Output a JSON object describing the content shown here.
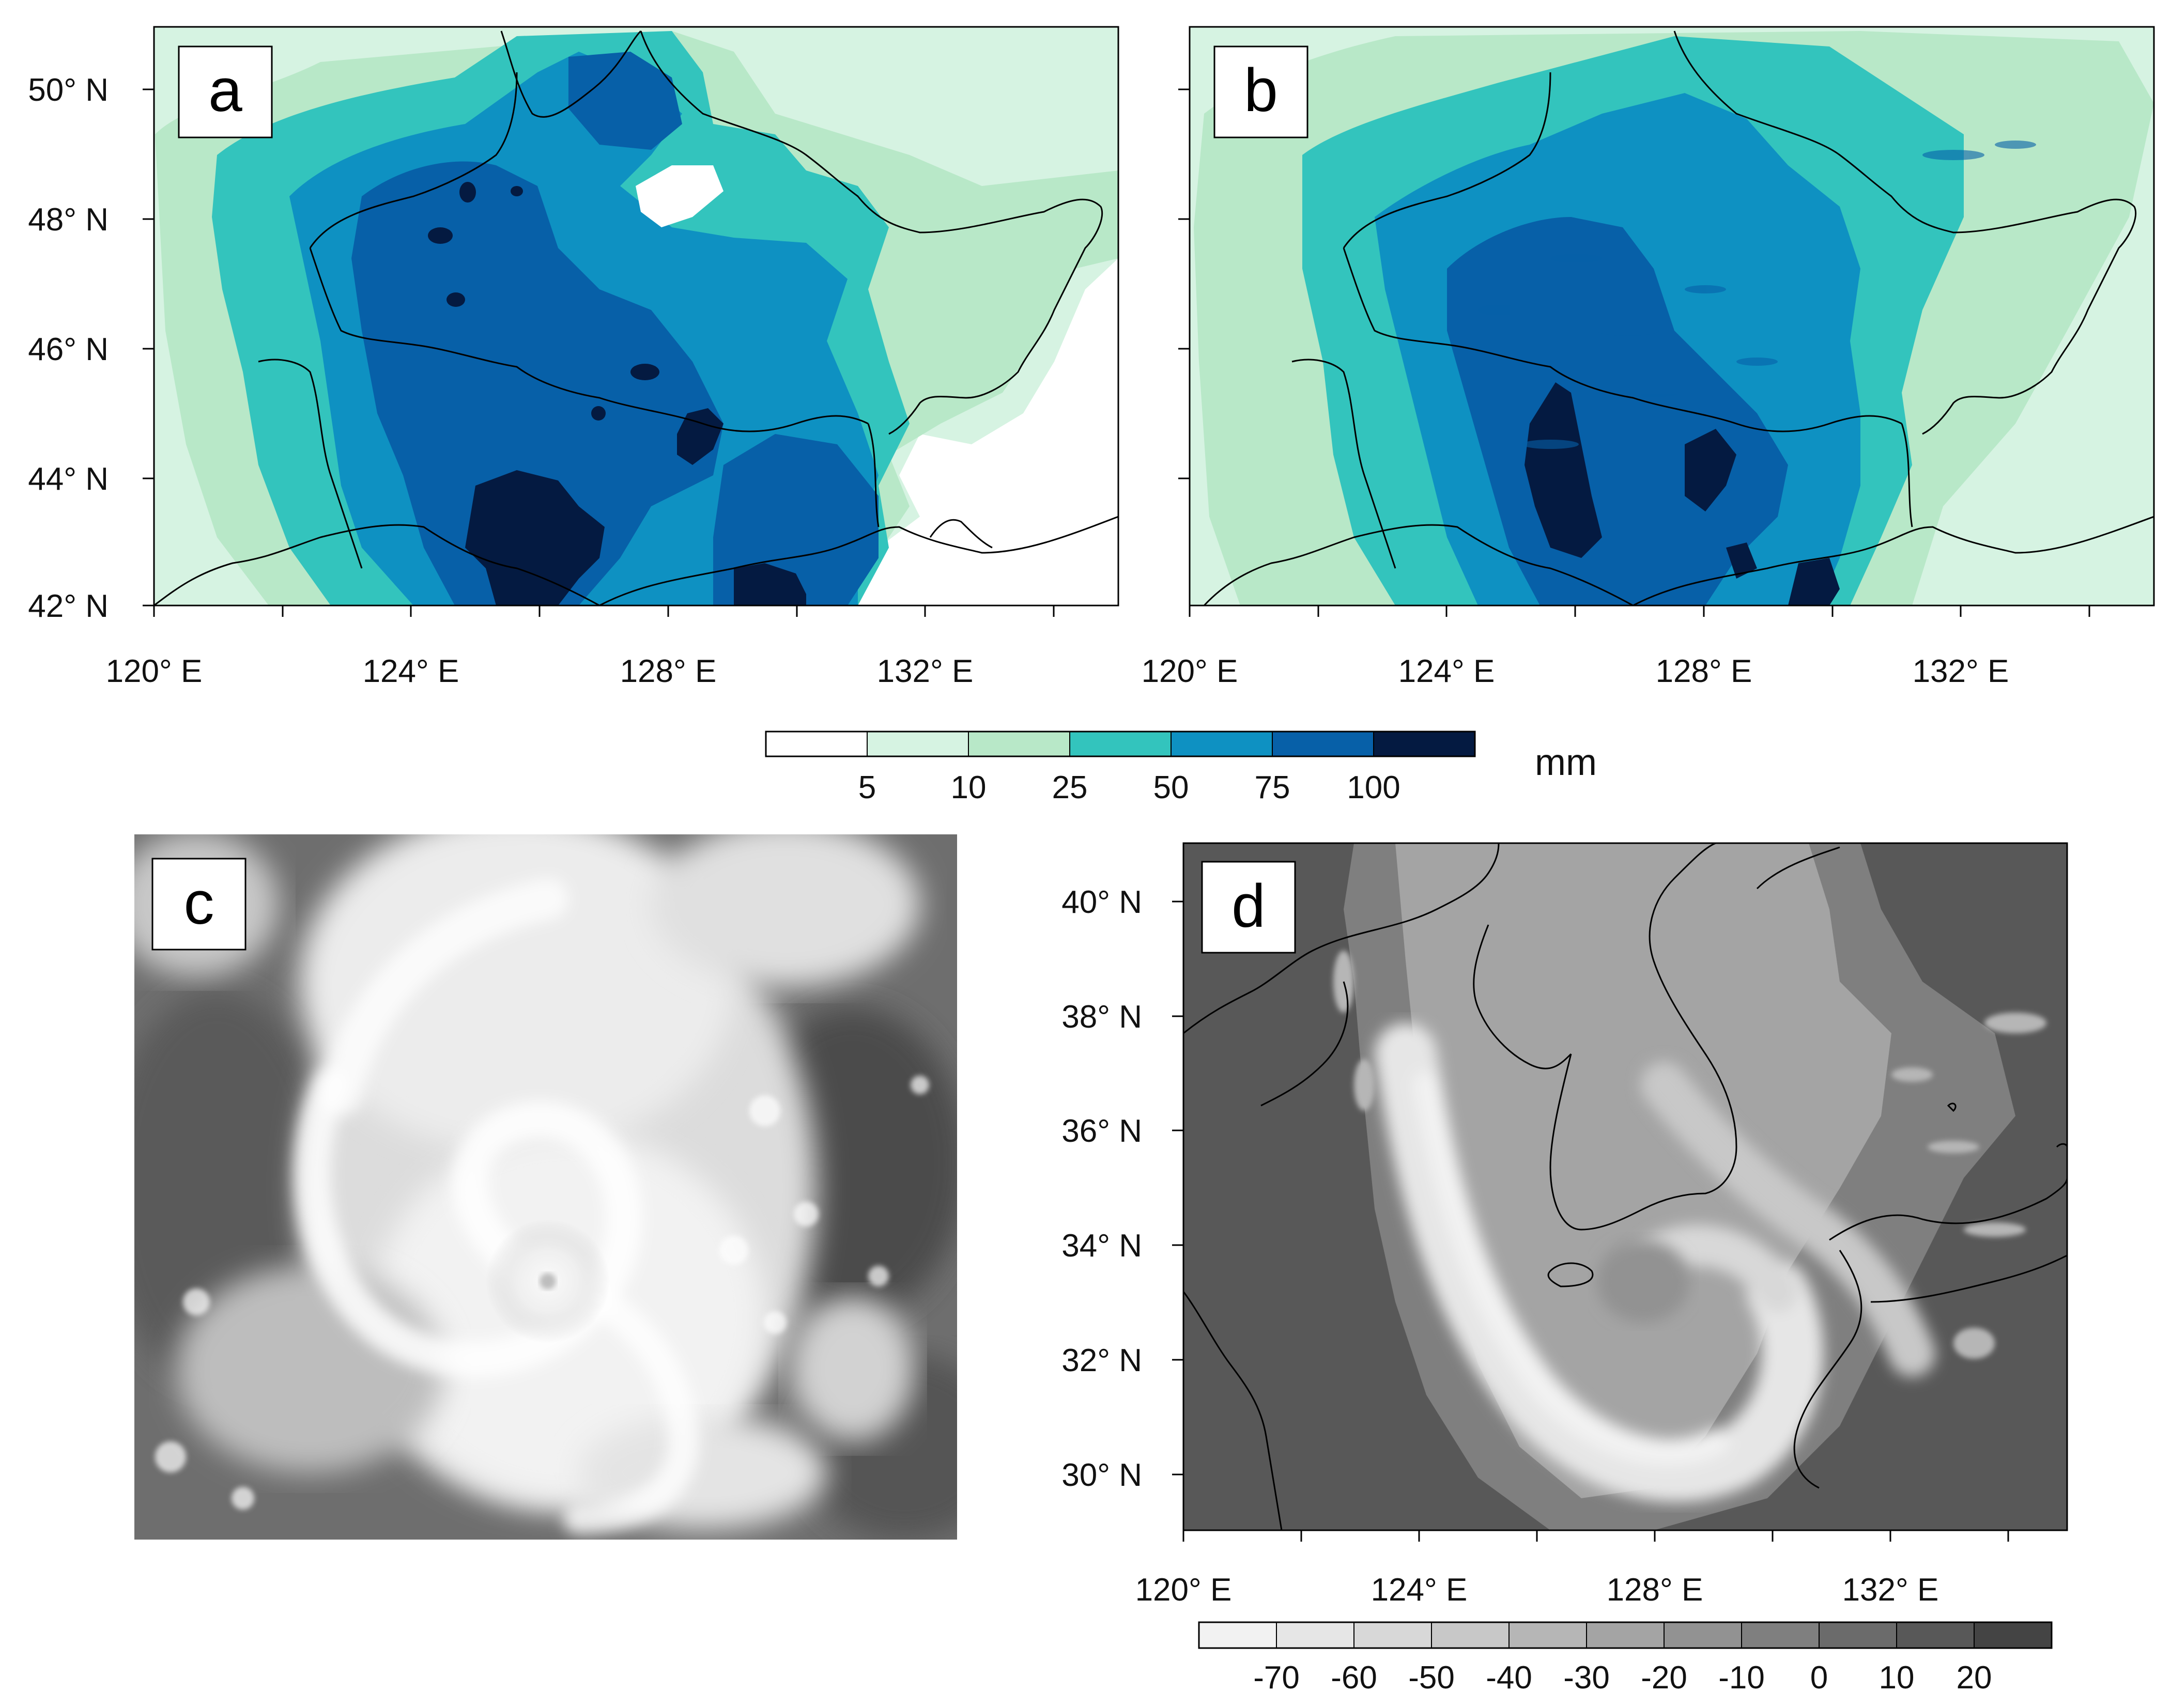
{
  "panels": [
    {
      "label": "a"
    },
    {
      "label": "b"
    },
    {
      "label": "c"
    },
    {
      "label": "d"
    }
  ],
  "top_maps": {
    "lat_ticks": [
      "50° N",
      "48° N",
      "46° N",
      "44° N",
      "42° N"
    ],
    "lon_ticks": [
      "120° E",
      "124° E",
      "128° E",
      "132° E"
    ]
  },
  "bottom_map": {
    "lat_ticks": [
      "40° N",
      "38° N",
      "36° N",
      "34° N",
      "32° N",
      "30° N"
    ],
    "lon_ticks": [
      "120° E",
      "124° E",
      "128° E",
      "132° E"
    ]
  },
  "precip_colorbar": {
    "unit": "mm",
    "labels": [
      "5",
      "10",
      "25",
      "50",
      "75",
      "100"
    ],
    "colors": [
      "#ffffff",
      "#d6f3e2",
      "#b8e8c8",
      "#33c4bd",
      "#0e91c2",
      "#0760a8",
      "#041a41"
    ]
  },
  "temp_colorbar": {
    "labels": [
      "-70",
      "-60",
      "-50",
      "-40",
      "-30",
      "-20",
      "-10",
      "0",
      "10",
      "20"
    ],
    "colors": [
      "#f2f2f2",
      "#e6e6e6",
      "#d8d8d8",
      "#c8c8c8",
      "#b6b6b6",
      "#a4a4a4",
      "#929292",
      "#7f7f7f",
      "#6b6b6b",
      "#585858",
      "#444444"
    ]
  }
}
